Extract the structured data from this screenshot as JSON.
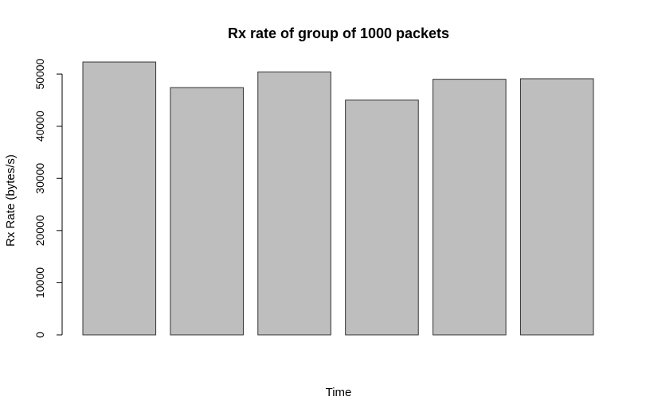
{
  "chart_data": {
    "type": "bar",
    "title": "Rx rate of group of 1000 packets",
    "xlabel": "Time",
    "ylabel": "Rx Rate (bytes/s)",
    "categories": [
      "",
      "",
      "",
      "",
      "",
      ""
    ],
    "values": [
      52300,
      47400,
      50400,
      45000,
      49000,
      49100
    ],
    "ylim": [
      0,
      52300
    ],
    "yticks": [
      0,
      10000,
      20000,
      30000,
      40000,
      50000
    ],
    "ytick_labels": [
      "0",
      "10000",
      "20000",
      "30000",
      "40000",
      "50000"
    ],
    "grid": false,
    "legend": "none",
    "colors": {
      "bar_fill": "#bebebe",
      "bar_stroke": "#333333",
      "axis": "#000000"
    }
  }
}
